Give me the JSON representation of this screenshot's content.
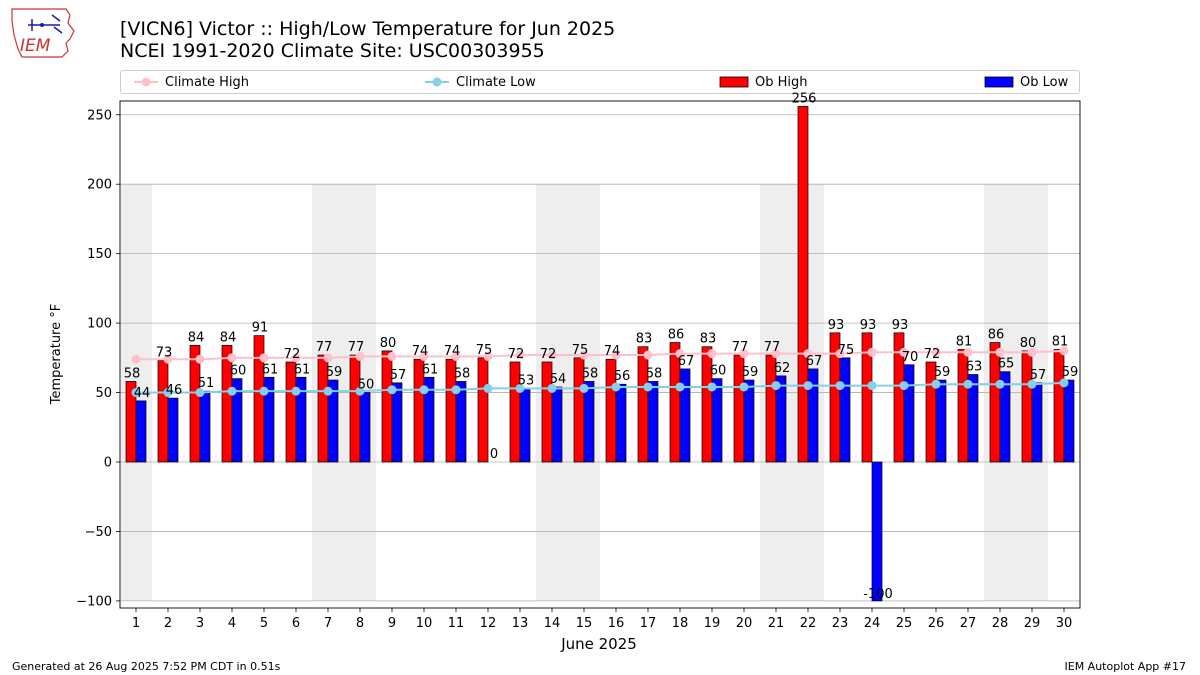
{
  "header": {
    "title_line1": "[VICN6] Victor :: High/Low Temperature for Jun 2025",
    "title_line2": "NCEI 1991-2020 Climate Site: USC00303955",
    "logo_text": "IEM"
  },
  "footer": {
    "left": "Generated at 26 Aug 2025 7:52 PM CDT in 0.51s",
    "right": "IEM Autoplot App #17"
  },
  "legend": {
    "items": [
      {
        "label": "Climate High",
        "color": "#ffc0cb",
        "kind": "line"
      },
      {
        "label": "Climate Low",
        "color": "#87ceeb",
        "kind": "line"
      },
      {
        "label": "Ob High",
        "color": "#ff0000",
        "kind": "bar"
      },
      {
        "label": "Ob Low",
        "color": "#0000ff",
        "kind": "bar"
      }
    ]
  },
  "chart_data": {
    "type": "bar",
    "xlabel": "June 2025",
    "ylabel": "Temperature °F",
    "ylim": [
      -100,
      256
    ],
    "yticks": [
      -100,
      -50,
      0,
      50,
      100,
      150,
      200,
      250
    ],
    "grid": "y",
    "legend_position": "top",
    "weekend_shading": [
      [
        1,
        1
      ],
      [
        7,
        8
      ],
      [
        14,
        15
      ],
      [
        21,
        22
      ],
      [
        28,
        29
      ]
    ],
    "categories": [
      "1",
      "2",
      "3",
      "4",
      "5",
      "6",
      "7",
      "8",
      "9",
      "10",
      "11",
      "12",
      "13",
      "14",
      "15",
      "16",
      "17",
      "18",
      "19",
      "20",
      "21",
      "22",
      "23",
      "24",
      "25",
      "26",
      "27",
      "28",
      "29",
      "30"
    ],
    "series": [
      {
        "name": "Ob High",
        "color": "#ff0000",
        "values": [
          58,
          73,
          84,
          84,
          91,
          72,
          77,
          77,
          80,
          74,
          74,
          75,
          72,
          72,
          75,
          74,
          83,
          86,
          83,
          77,
          77,
          256,
          93,
          93,
          93,
          72,
          81,
          86,
          80,
          81
        ],
        "labels": [
          "58",
          "73",
          "84",
          "84",
          "91",
          "72",
          "77",
          "77",
          "80",
          "74",
          "74",
          "75",
          "72",
          "72",
          "75",
          "74",
          "83",
          "86",
          "83",
          "77",
          "77",
          "256",
          "93",
          "93",
          "93",
          "72",
          "81",
          "86",
          "80",
          "81"
        ]
      },
      {
        "name": "Ob Low",
        "color": "#0000ff",
        "values": [
          44,
          46,
          51,
          60,
          61,
          61,
          59,
          50,
          57,
          61,
          58,
          0,
          53,
          54,
          58,
          56,
          58,
          67,
          60,
          59,
          62,
          67,
          75,
          -100,
          70,
          59,
          63,
          65,
          57,
          59
        ],
        "labels": [
          "44",
          "46",
          "51",
          "60",
          "61",
          "61",
          "59",
          "50",
          "57",
          "61",
          "58",
          "0",
          "53",
          "54",
          "58",
          "56",
          "58",
          "67",
          "60",
          "59",
          "62",
          "67",
          "75",
          "-100",
          "70",
          "59",
          "63",
          "65",
          "57",
          "59"
        ]
      },
      {
        "name": "Climate High",
        "color": "#ffc0cb",
        "values": [
          74,
          74,
          74,
          75,
          75,
          75,
          75,
          76,
          76,
          76,
          76,
          76,
          77,
          77,
          77,
          77,
          77,
          78,
          78,
          78,
          78,
          78,
          78,
          79,
          79,
          79,
          79,
          79,
          79,
          80
        ]
      },
      {
        "name": "Climate Low",
        "color": "#87ceeb",
        "values": [
          50,
          50,
          50,
          51,
          51,
          51,
          51,
          51,
          52,
          52,
          52,
          53,
          53,
          53,
          53,
          54,
          54,
          54,
          54,
          54,
          55,
          55,
          55,
          55,
          55,
          56,
          56,
          56,
          56,
          57
        ]
      }
    ]
  }
}
